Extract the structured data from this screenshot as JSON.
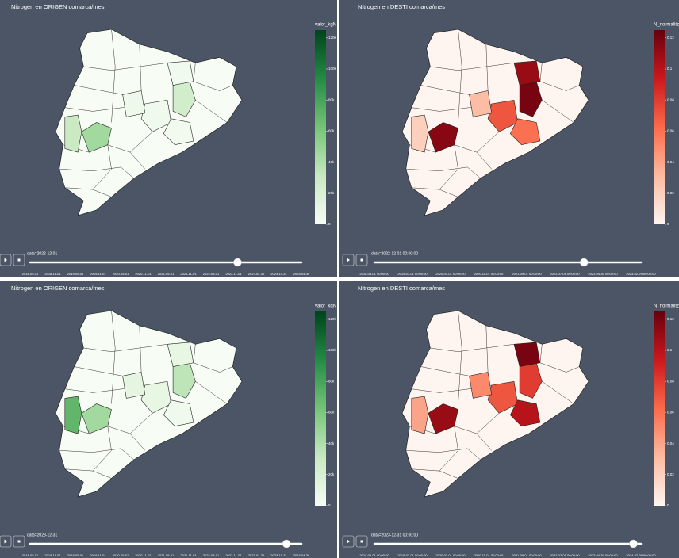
{
  "chart_data": [
    {
      "type": "choropleth",
      "title": "Nitrogen en ORIGEN comarca/mes",
      "colorbar_title": "valor_kgN",
      "colorscale": [
        "#f7fcf5",
        "#c7e9c0",
        "#74c476",
        "#238b45",
        "#00441b"
      ],
      "zlim": [
        0,
        125000
      ],
      "colorbar_ticks": [
        0,
        {
          "value": 20000,
          "label": "20k"
        },
        {
          "value": 40000,
          "label": "40k"
        },
        {
          "value": 60000,
          "label": "60k"
        },
        {
          "value": 80000,
          "label": "80k"
        },
        {
          "value": 100000,
          "label": "100k"
        },
        {
          "value": 120000,
          "label": "120k"
        }
      ],
      "values": [
        45000,
        30000,
        25000,
        5000,
        3000,
        4000,
        6000
      ],
      "slider_label": "data=2022-12-01",
      "slider_ticks": [
        "2018-05-01",
        "2018-11-01",
        "2019-05-01",
        "2019-11-01",
        "2020-05-01",
        "2020-11-01",
        "2021-05-01",
        "2021-11-01",
        "2022-05-01",
        "2022-11-01",
        "2023-04-30",
        "2023-10-31",
        "2024-04-30"
      ]
    },
    {
      "type": "choropleth",
      "title": "Nitrogen en DESTI comarca/mes",
      "colorbar_title": "N_normalitz",
      "colorscale": [
        "#fff5f0",
        "#fcbba1",
        "#fb6a4a",
        "#cb181d",
        "#67000d"
      ],
      "zlim": [
        0,
        0.125
      ],
      "colorbar_ticks": [
        0,
        0.02,
        0.04,
        0.06,
        0.08,
        0.1,
        0.12
      ],
      "values": [
        0.115,
        0.02,
        0.12,
        0.07,
        0.06,
        0.11,
        0.03
      ],
      "slider_label": "data=2022-12-01 00:00:00",
      "slider_ticks": [
        "2018-05-01 00:00:00",
        "2019-03-01 00:00:00",
        "2020-01-01 00:00:00",
        "2020-11-01 00:00:00",
        "2021-09-01 00:00:00",
        "2022-07-01 00:00:00",
        "2023-04-30 00:00:00",
        "2024-02-29 00:00:00"
      ]
    },
    {
      "type": "choropleth",
      "title": "Nitrogen en ORIGEN comarca/mes",
      "colorbar_title": "valor_kgN",
      "colorscale": [
        "#f7fcf5",
        "#c7e9c0",
        "#74c476",
        "#238b45",
        "#00441b"
      ],
      "zlim": [
        0,
        125000
      ],
      "colorbar_ticks": [
        0,
        {
          "value": 20000,
          "label": "20k"
        },
        {
          "value": 40000,
          "label": "40k"
        },
        {
          "value": 60000,
          "label": "60k"
        },
        {
          "value": 80000,
          "label": "80k"
        },
        {
          "value": 100000,
          "label": "100k"
        },
        {
          "value": 120000,
          "label": "120k"
        }
      ],
      "values": [
        45000,
        70000,
        35000,
        10000,
        5000,
        10000,
        12000
      ],
      "slider_label": "data=2023-12-31",
      "slider_ticks": [
        "2018-05-01",
        "2018-11-01",
        "2019-05-01",
        "2019-11-01",
        "2020-05-01",
        "2020-11-01",
        "2021-05-01",
        "2021-11-01",
        "2022-05-01",
        "2022-11-01",
        "2023-04-30",
        "2023-10-31",
        "2024-04-30"
      ]
    },
    {
      "type": "choropleth",
      "title": "Nitrogen en DESTI comarca/mes",
      "colorbar_title": "N_normalitz",
      "colorscale": [
        "#fff5f0",
        "#fcbba1",
        "#fb6a4a",
        "#cb181d",
        "#67000d"
      ],
      "zlim": [
        0,
        0.125
      ],
      "colorbar_ticks": [
        0,
        0.02,
        0.04,
        0.06,
        0.08,
        0.1,
        0.12
      ],
      "values": [
        0.11,
        0.04,
        0.08,
        0.07,
        0.1,
        0.12,
        0.05
      ],
      "slider_label": "data=2023-12-31 00:00:00",
      "slider_ticks": [
        "2018-05-01 00:00:00",
        "2019-03-01 00:00:00",
        "2020-01-01 00:00:00",
        "2020-11-01 00:00:00",
        "2021-09-01 00:00:00",
        "2022-07-01 00:00:00",
        "2023-04-30 00:00:00",
        "2024-02-29 00:00:00"
      ]
    }
  ]
}
